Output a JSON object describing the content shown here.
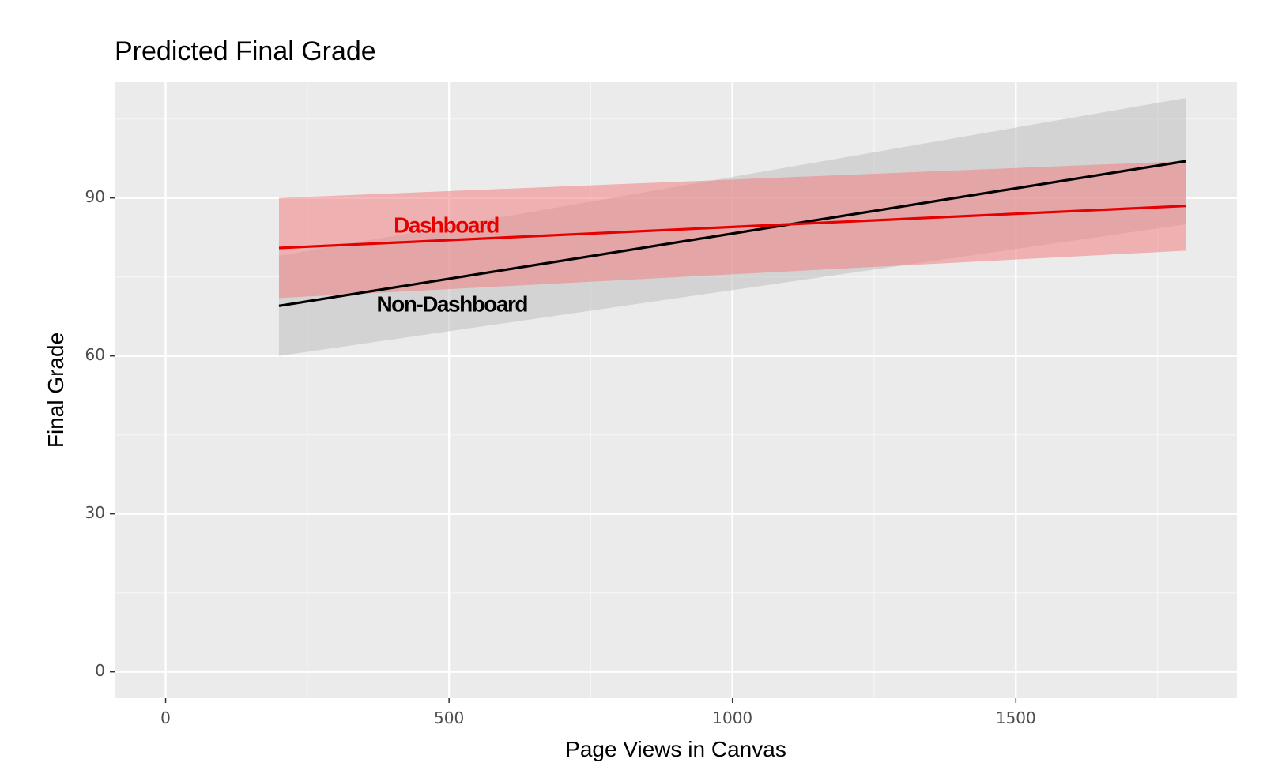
{
  "chart_data": {
    "type": "line",
    "title": "Predicted Final Grade",
    "xlabel": "Page Views in Canvas",
    "ylabel": "Final Grade",
    "xlim": [
      -90,
      1890
    ],
    "ylim": [
      -5,
      112
    ],
    "x_ticks": [
      0,
      500,
      1000,
      1500
    ],
    "y_ticks": [
      0,
      30,
      60,
      90
    ],
    "x_tick_labels": [
      "0",
      "500",
      "1000",
      "1500"
    ],
    "y_tick_labels": [
      "0",
      "30",
      "60",
      "90"
    ],
    "grid": true,
    "legend": "none",
    "series": [
      {
        "name": "Non-Dashboard",
        "color": "#000000",
        "band_color": "#bfbfbf",
        "x": [
          200,
          1800
        ],
        "y": [
          69.5,
          97
        ],
        "lower": [
          60,
          85
        ],
        "upper": [
          79,
          109
        ]
      },
      {
        "name": "Dashboard",
        "color": "#e60000",
        "band_color": "#f08080",
        "x": [
          200,
          1800
        ],
        "y": [
          80.5,
          88.5
        ],
        "lower": [
          71,
          80
        ],
        "upper": [
          90,
          97
        ]
      }
    ],
    "annotations": [
      {
        "text": "Dashboard",
        "x": 495,
        "y": 84.5,
        "color": "#e60000"
      },
      {
        "text": "Non-Dashboard",
        "x": 505,
        "y": 69.5,
        "color": "#000000"
      }
    ]
  }
}
